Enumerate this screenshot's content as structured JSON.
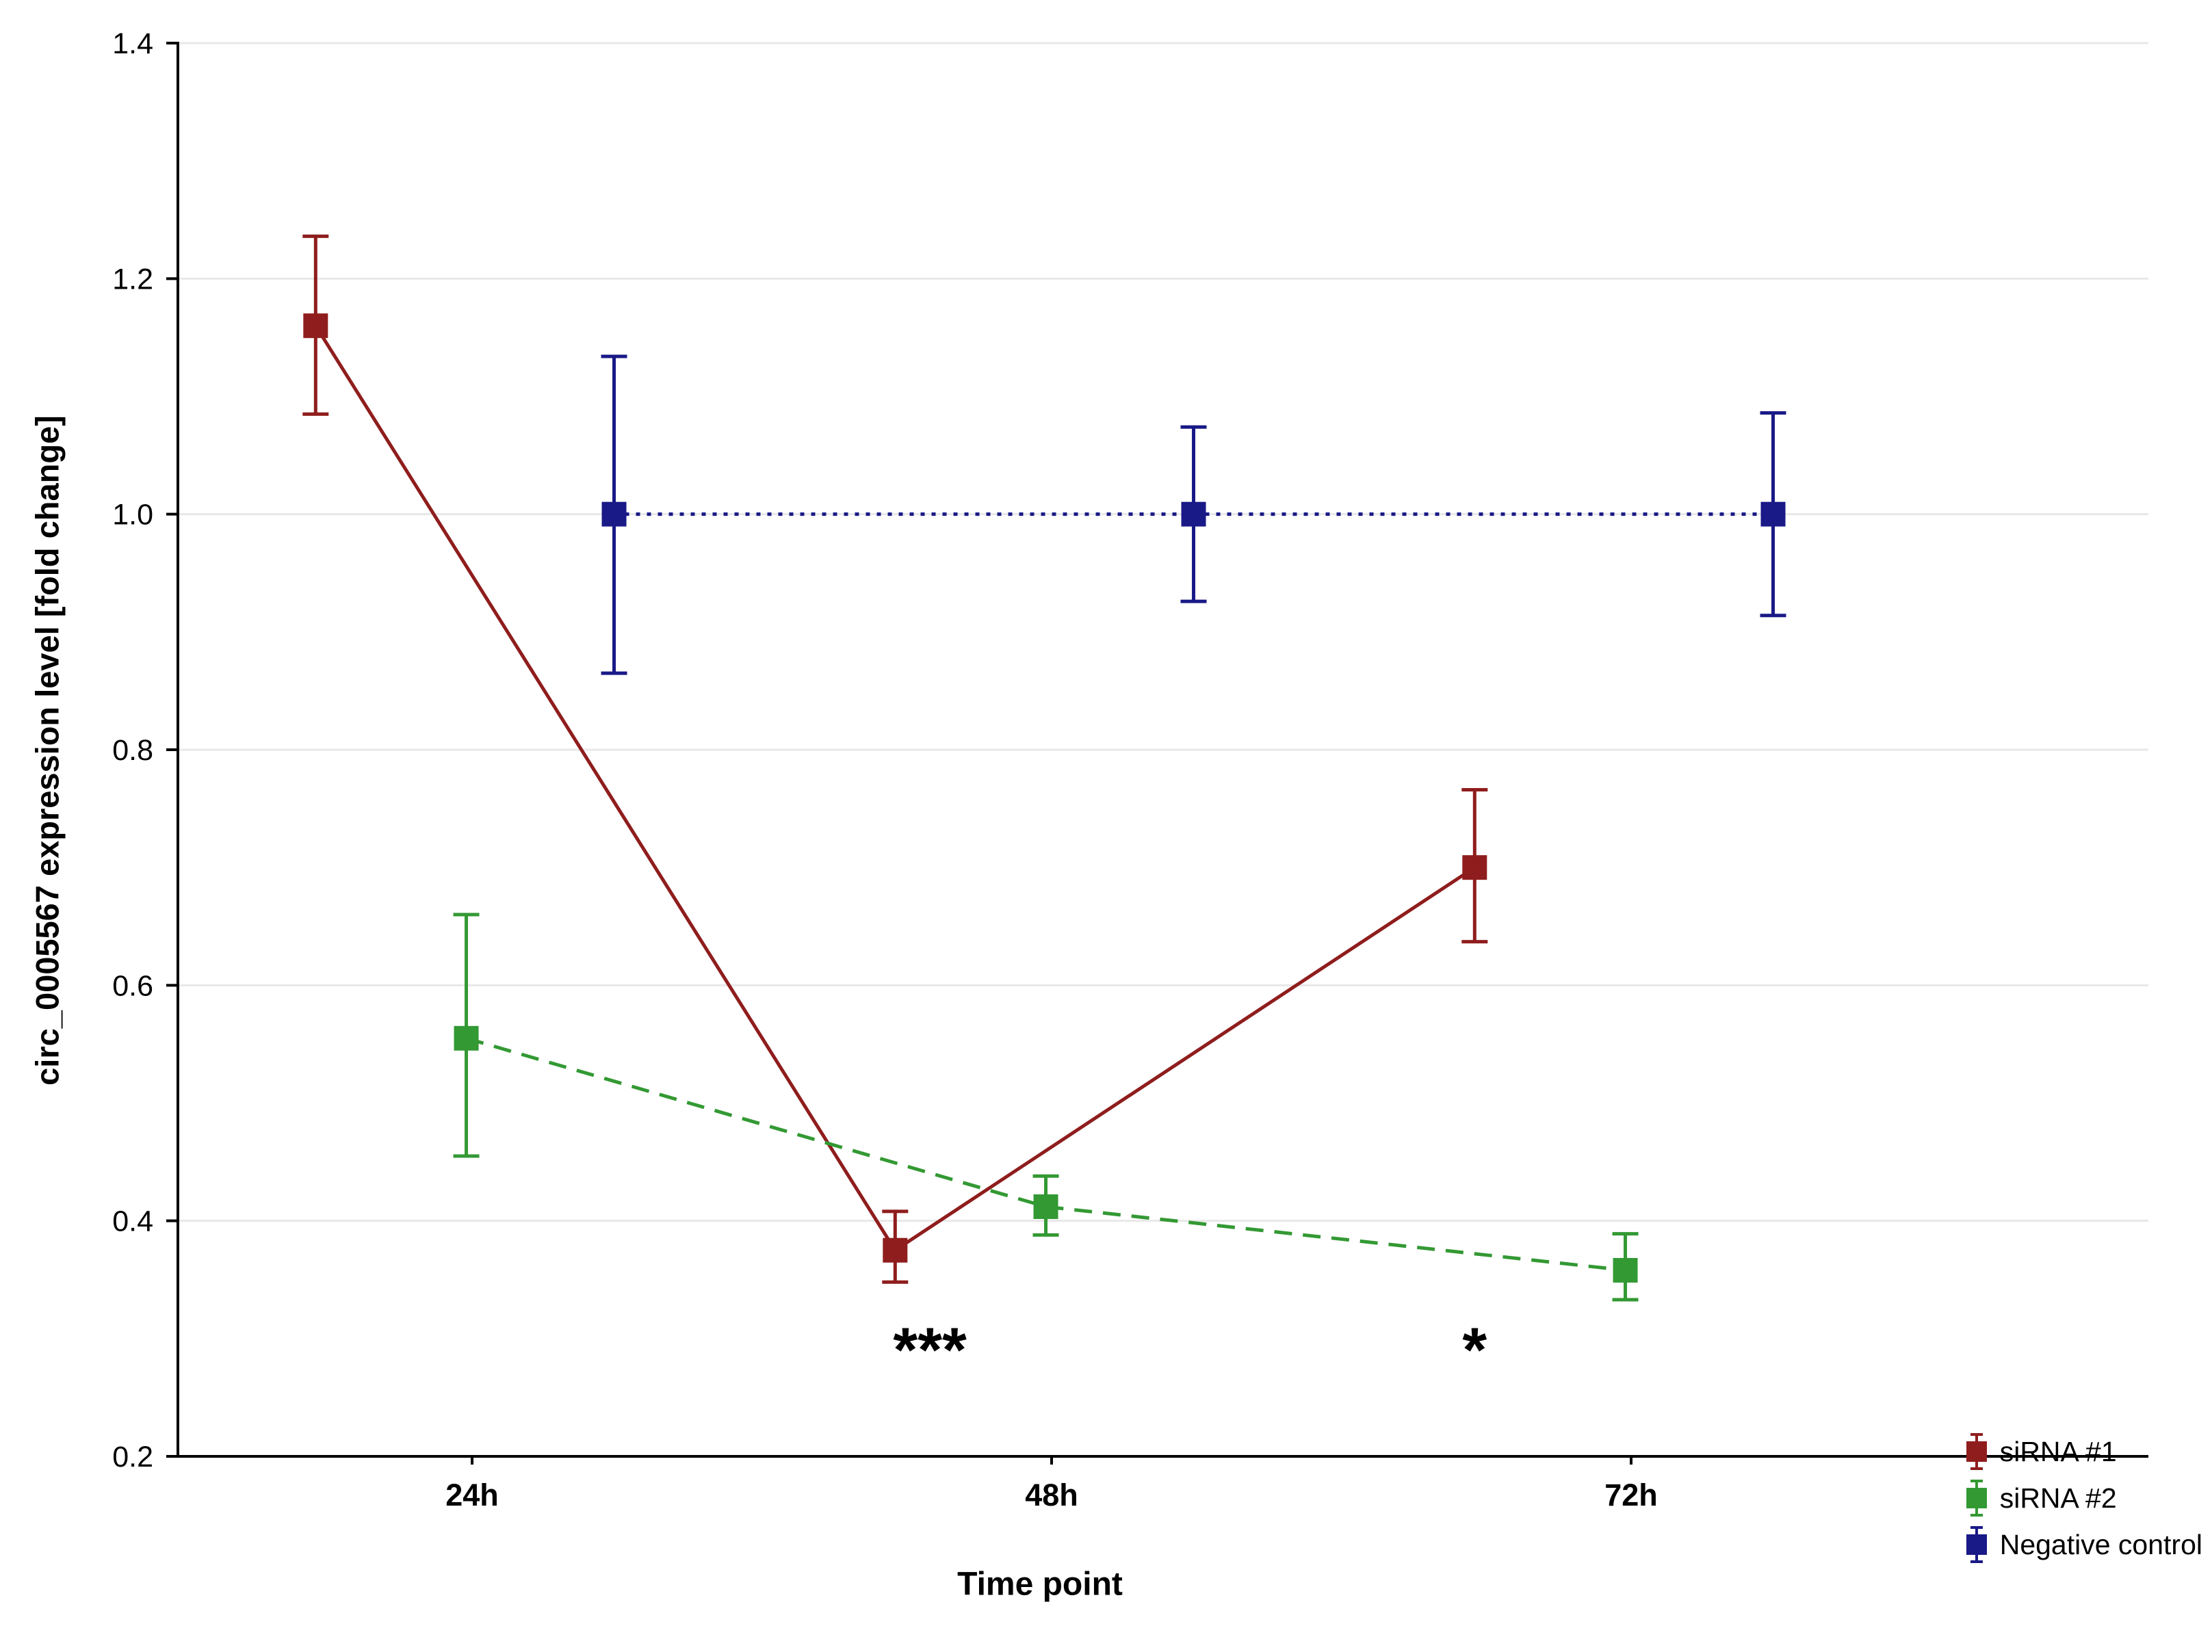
{
  "chart_data": {
    "type": "line",
    "title": "",
    "xlabel": "Time point",
    "ylabel": "circ_0005567 expression level [fold change]",
    "categories": [
      "24h",
      "48h",
      "72h"
    ],
    "ylim": [
      0.2,
      1.4
    ],
    "yticks": [
      "0.2",
      "0.4",
      "0.6",
      "0.8",
      "1.0",
      "1.2",
      "1.4"
    ],
    "grid": true,
    "grid_color": "#e8e8e8",
    "axis_color": "#000000",
    "legend_position": "bottom-right",
    "marker": "square",
    "series": [
      {
        "name": "siRNA #1",
        "color": "#8f1d1d",
        "line_style": "solid",
        "x_offset": -0.27,
        "values": [
          1.16,
          0.375,
          0.7
        ],
        "err_low": [
          0.075,
          0.027,
          0.063
        ],
        "err_high": [
          0.076,
          0.033,
          0.066
        ]
      },
      {
        "name": "siRNA #2",
        "color": "#339933",
        "line_style": "dashed",
        "x_offset": -0.01,
        "values": [
          0.555,
          0.412,
          0.358
        ],
        "err_low": [
          0.1,
          0.024,
          0.025
        ],
        "err_high": [
          0.105,
          0.026,
          0.031
        ]
      },
      {
        "name": "Negative control",
        "color": "#191987",
        "line_style": "dotted",
        "x_offset": 0.245,
        "values": [
          1.0,
          1.0,
          1.0
        ],
        "err_low": [
          0.135,
          0.074,
          0.086
        ],
        "err_high": [
          0.134,
          0.074,
          0.086
        ]
      }
    ],
    "annotations": [
      {
        "text": "***",
        "category": "48h",
        "cat_index": 1,
        "x_offset": -0.21,
        "value": 0.3
      },
      {
        "text": "*",
        "category": "72h",
        "cat_index": 2,
        "x_offset": -0.27,
        "value": 0.3
      }
    ]
  }
}
